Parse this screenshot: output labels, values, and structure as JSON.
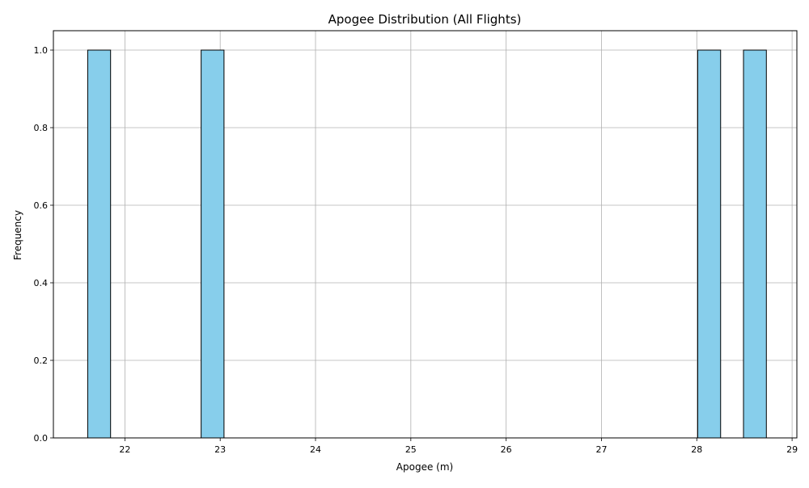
{
  "chart_data": {
    "type": "bar",
    "subtype": "histogram",
    "title": "Apogee Distribution (All Flights)",
    "xlabel": "Apogee (m)",
    "ylabel": "Frequency",
    "xlim": [
      21.25,
      29.05
    ],
    "ylim": [
      0,
      1.05
    ],
    "xticks": [
      22,
      23,
      24,
      25,
      26,
      27,
      28,
      29
    ],
    "yticks": [
      0,
      0.2,
      0.4,
      0.6,
      0.8,
      1.0
    ],
    "ytick_labels": [
      "0.0",
      "0.2",
      "0.4",
      "0.6",
      "0.8",
      "1.0"
    ],
    "grid": true,
    "bars": [
      {
        "x0": 21.61,
        "x1": 21.85,
        "value": 1
      },
      {
        "x0": 22.8,
        "x1": 23.04,
        "value": 1
      },
      {
        "x0": 28.01,
        "x1": 28.25,
        "value": 1
      },
      {
        "x0": 28.49,
        "x1": 28.73,
        "value": 1
      }
    ],
    "bar_color": "#87ceeb",
    "edge_color": "#000000"
  }
}
